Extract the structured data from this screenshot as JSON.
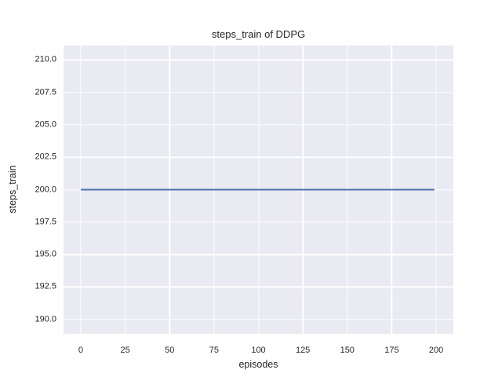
{
  "chart_data": {
    "type": "line",
    "title": "steps_train of DDPG",
    "xlabel": "episodes",
    "ylabel": "steps_train",
    "x_tick_values": [
      0,
      25,
      50,
      75,
      100,
      125,
      150,
      175,
      200
    ],
    "x_tick_labels": [
      "0",
      "25",
      "50",
      "75",
      "100",
      "125",
      "150",
      "175",
      "200"
    ],
    "y_tick_values": [
      210.0,
      207.5,
      205.0,
      202.5,
      200.0,
      197.5,
      195.0,
      192.5,
      190.0
    ],
    "y_tick_labels": [
      "210.0",
      "207.5",
      "205.0",
      "202.5",
      "200.0",
      "197.5",
      "195.0",
      "192.5",
      "190.0"
    ],
    "xlim": [
      -9.7,
      209.7
    ],
    "ylim": [
      188.9,
      211.1
    ],
    "grid": true,
    "legend": false,
    "style": "seaborn-darkgrid",
    "series": [
      {
        "name": "steps_train",
        "x": [
          0,
          199
        ],
        "y": [
          200,
          200
        ],
        "color": "#4c72b0",
        "description": "constant value 200 across episodes 0 to 199"
      }
    ]
  },
  "colors": {
    "figure_bg": "#ffffff",
    "axes_bg": "#eaeaf2",
    "grid": "#ffffff",
    "text": "#262626",
    "line": "#4c72b0"
  }
}
